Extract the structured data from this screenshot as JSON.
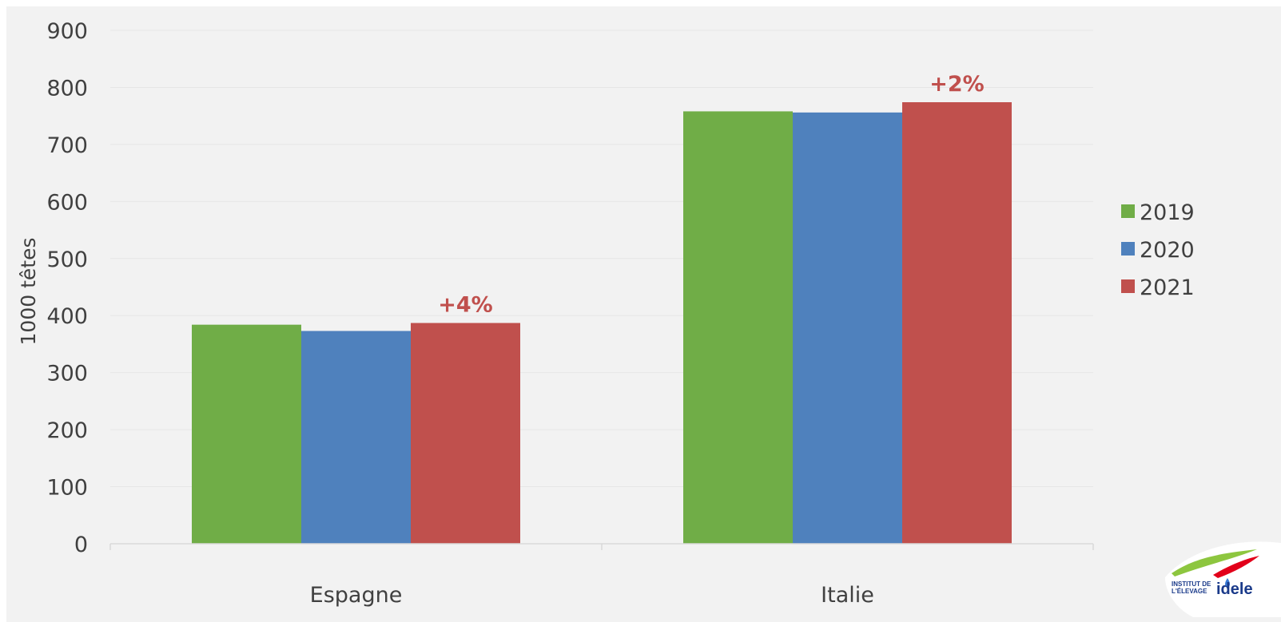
{
  "chart_data": {
    "type": "bar",
    "categories": [
      "Espagne",
      "Italie"
    ],
    "series": [
      {
        "name": "2019",
        "values": [
          384,
          758
        ],
        "color": "#70ad47"
      },
      {
        "name": "2020",
        "values": [
          373,
          756
        ],
        "color": "#4f81bd"
      },
      {
        "name": "2021",
        "values": [
          387,
          774
        ],
        "color": "#c0504d"
      }
    ],
    "title": "",
    "xlabel": "",
    "ylabel": "1000 têtes",
    "ylim": [
      0,
      900
    ],
    "yticks": [
      "0",
      "100",
      "200",
      "300",
      "400",
      "500",
      "600",
      "700",
      "800",
      "900"
    ],
    "grid": true,
    "legend_placement": "right",
    "annotations": [
      {
        "category": "Espagne",
        "series": "2021",
        "text": "+4%",
        "color": "#c0504d"
      },
      {
        "category": "Italie",
        "series": "2021",
        "text": "+2%",
        "color": "#c0504d"
      }
    ]
  },
  "logo": {
    "line1": "INSTITUT DE",
    "line2": "L'ÉLEVAGE",
    "brand": "idele"
  }
}
